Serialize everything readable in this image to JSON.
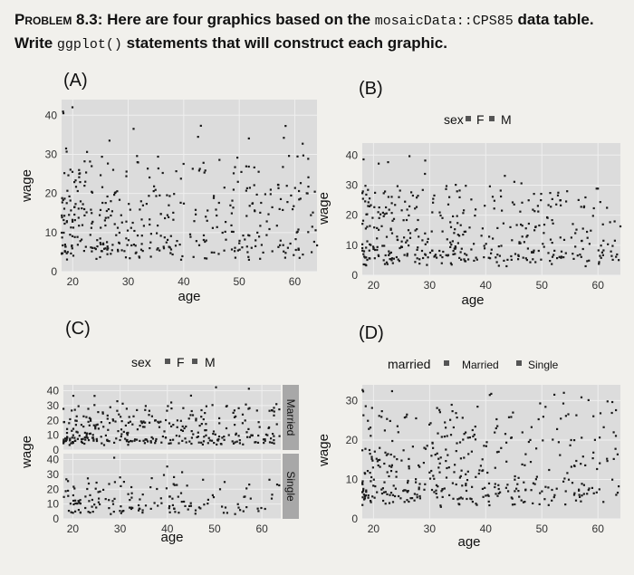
{
  "problem": {
    "lead": "Problem 8.3:",
    "text_a": " Here are four graphics based on the ",
    "code_a": "mosaicData::CPS85",
    "text_b": " data table. Write ",
    "code_b": "ggplot()",
    "text_c": " statements that will construct each graphic."
  },
  "panels": {
    "a": {
      "label": "(A)",
      "xlabel": "age",
      "ylabel": "wage",
      "xticks": [
        "20",
        "30",
        "40",
        "50",
        "60"
      ],
      "yticks": [
        "0",
        "10",
        "20",
        "30",
        "40"
      ]
    },
    "b": {
      "label": "(B)",
      "xlabel": "age",
      "ylabel": "wage",
      "xticks": [
        "20",
        "30",
        "40",
        "50",
        "60"
      ],
      "yticks": [
        "0",
        "10",
        "20",
        "30",
        "40"
      ],
      "legend_title": "sex",
      "legend_items": [
        "F",
        "M"
      ]
    },
    "c": {
      "label": "(C)",
      "xlabel": "age",
      "ylabel": "wage",
      "xticks": [
        "20",
        "30",
        "40",
        "50",
        "60"
      ],
      "yticks_top": [
        "0",
        "10",
        "20",
        "30",
        "40"
      ],
      "yticks_bottom": [
        "0",
        "10",
        "20",
        "30",
        "40"
      ],
      "legend_title": "sex",
      "legend_items": [
        "F",
        "M"
      ],
      "strips": [
        "Married",
        "Single"
      ]
    },
    "d": {
      "label": "(D)",
      "xlabel": "age",
      "ylabel": "wage",
      "xticks": [
        "20",
        "30",
        "40",
        "50",
        "60"
      ],
      "yticks": [
        "0",
        "10",
        "20",
        "30"
      ],
      "legend_title": "married",
      "legend_items": [
        "Married",
        "Single"
      ]
    }
  },
  "chart_data": [
    {
      "type": "scatter",
      "panel": "A",
      "x_variable": "age",
      "y_variable": "wage",
      "xlim": [
        18,
        64
      ],
      "ylim": [
        0,
        44
      ],
      "xlabel": "age",
      "ylabel": "wage"
    },
    {
      "type": "scatter",
      "panel": "B",
      "x_variable": "age",
      "y_variable": "wage",
      "color_variable": "sex",
      "legend": [
        "F",
        "M"
      ],
      "legend_position": "top",
      "xlim": [
        18,
        64
      ],
      "ylim": [
        0,
        44
      ],
      "xlabel": "age",
      "ylabel": "wage"
    },
    {
      "type": "scatter",
      "panel": "C",
      "x_variable": "age",
      "y_variable": "wage",
      "color_variable": "sex",
      "legend": [
        "F",
        "M"
      ],
      "legend_position": "top",
      "facet_rows": [
        "Married",
        "Single"
      ],
      "xlim": [
        18,
        64
      ],
      "ylim": [
        0,
        44
      ],
      "xlabel": "age",
      "ylabel": "wage"
    },
    {
      "type": "scatter",
      "panel": "D",
      "x_variable": "age",
      "y_variable": "wage",
      "color_variable": "married",
      "legend": [
        "Married",
        "Single"
      ],
      "legend_position": "top",
      "xlim": [
        18,
        64
      ],
      "ylim": [
        0,
        34
      ],
      "xlabel": "age",
      "ylabel": "wage"
    }
  ]
}
